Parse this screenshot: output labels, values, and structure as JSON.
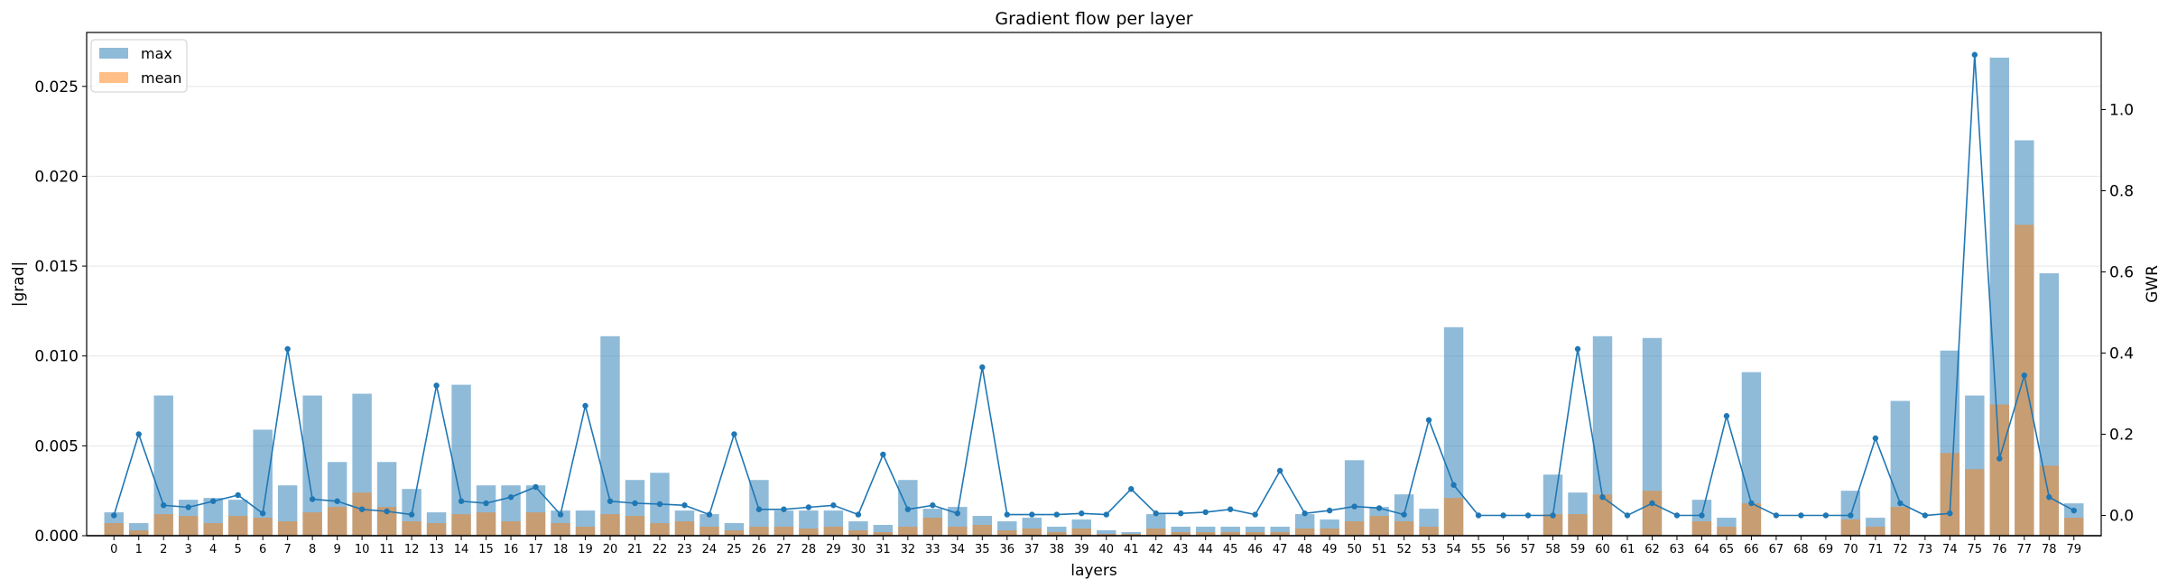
{
  "chart_data": {
    "type": "bar",
    "title": "Gradient flow per layer",
    "xlabel": "layers",
    "ylabel": "|grad|",
    "ylabel_right": "GWR",
    "ylim": [
      0,
      0.028
    ],
    "ylim_right": [
      -0.05,
      1.19
    ],
    "yticks": [
      "0.000",
      "0.005",
      "0.010",
      "0.015",
      "0.020",
      "0.025"
    ],
    "yticks_right": [
      "0.0",
      "0.2",
      "0.4",
      "0.6",
      "0.8",
      "1.0"
    ],
    "categories": [
      "0",
      "1",
      "2",
      "3",
      "4",
      "5",
      "6",
      "7",
      "8",
      "9",
      "10",
      "11",
      "12",
      "13",
      "14",
      "15",
      "16",
      "17",
      "18",
      "19",
      "20",
      "21",
      "22",
      "23",
      "24",
      "25",
      "26",
      "27",
      "28",
      "29",
      "30",
      "31",
      "32",
      "33",
      "34",
      "35",
      "36",
      "37",
      "38",
      "39",
      "40",
      "41",
      "42",
      "43",
      "44",
      "45",
      "46",
      "47",
      "48",
      "49",
      "50",
      "51",
      "52",
      "53",
      "54",
      "55",
      "56",
      "57",
      "58",
      "59",
      "60",
      "61",
      "62",
      "63",
      "64",
      "65",
      "66",
      "67",
      "68",
      "69",
      "70",
      "71",
      "72",
      "73",
      "74",
      "75",
      "76",
      "77",
      "78",
      "79"
    ],
    "series": [
      {
        "name": "max",
        "color": "#1f77b4",
        "values": [
          0.0013,
          0.0007,
          0.0078,
          0.002,
          0.0021,
          0.002,
          0.0059,
          0.0028,
          0.0078,
          0.0041,
          0.0079,
          0.0041,
          0.0026,
          0.0013,
          0.0084,
          0.0028,
          0.0028,
          0.0028,
          0.0014,
          0.0014,
          0.0111,
          0.0031,
          0.0035,
          0.0014,
          0.0012,
          0.0007,
          0.0031,
          0.0014,
          0.0014,
          0.0014,
          0.0008,
          0.0006,
          0.0031,
          0.0015,
          0.0016,
          0.0011,
          0.0008,
          0.001,
          0.0005,
          0.0009,
          0.0003,
          0.0002,
          0.0012,
          0.0005,
          0.0005,
          0.0005,
          0.0005,
          0.0005,
          0.0012,
          0.0009,
          0.0042,
          0.0016,
          0.0023,
          0.0015,
          0.0116,
          0,
          0,
          0,
          0.0034,
          0.0024,
          0.0111,
          0,
          0.011,
          0,
          0.002,
          0.001,
          0.0091,
          0,
          0,
          0,
          0.0025,
          0.001,
          0.0075,
          0,
          0.0103,
          0.0078,
          0.0266,
          0.022,
          0.0146,
          0.0018
        ]
      },
      {
        "name": "mean",
        "color": "#ff7f0e",
        "values": [
          0.0007,
          0.0003,
          0.0012,
          0.0011,
          0.0007,
          0.0011,
          0.001,
          0.0008,
          0.0013,
          0.0016,
          0.0024,
          0.0016,
          0.0008,
          0.0007,
          0.0012,
          0.0013,
          0.0008,
          0.0013,
          0.0007,
          0.0005,
          0.0012,
          0.0011,
          0.0007,
          0.0008,
          0.0005,
          0.0003,
          0.0005,
          0.0005,
          0.0004,
          0.0005,
          0.0003,
          0.0002,
          0.0005,
          0.001,
          0.0005,
          0.0006,
          0.0003,
          0.0004,
          0.0002,
          0.0004,
          0.0001,
          0.0001,
          0.0004,
          0.0002,
          0.0002,
          0.0002,
          0.0002,
          0.0002,
          0.0004,
          0.0004,
          0.0008,
          0.0011,
          0.0008,
          0.0005,
          0.0021,
          0,
          0,
          0,
          0.0012,
          0.0012,
          0.0023,
          0,
          0.0025,
          0,
          0.0008,
          0.0005,
          0.0018,
          0,
          0,
          0,
          0.0009,
          0.0005,
          0.0016,
          0,
          0.0046,
          0.0037,
          0.0073,
          0.0173,
          0.0039,
          0.001
        ]
      },
      {
        "name": "GWR",
        "color": "#1f77b4",
        "axis": "right",
        "values": [
          0,
          0.2,
          0.025,
          0.02,
          0.035,
          0.05,
          0.005,
          0.41,
          0.04,
          0.035,
          0.015,
          0.01,
          0.002,
          0.32,
          0.035,
          0.03,
          0.045,
          0.07,
          0.002,
          0.27,
          0.035,
          0.03,
          0.028,
          0.025,
          0.002,
          0.2,
          0.015,
          0.015,
          0.02,
          0.025,
          0.002,
          0.15,
          0.015,
          0.025,
          0.005,
          0.365,
          0.002,
          0.002,
          0.002,
          0.005,
          0.002,
          0.065,
          0.005,
          0.005,
          0.008,
          0.015,
          0.002,
          0.11,
          0.005,
          0.012,
          0.022,
          0.018,
          0.002,
          0.235,
          0.075,
          0,
          0,
          0,
          0,
          0.41,
          0.045,
          0,
          0.03,
          0,
          0,
          0.245,
          0.03,
          0,
          0,
          0,
          0,
          0.19,
          0.03,
          0,
          0.005,
          1.135,
          0.14,
          0.345,
          0.045,
          0.012
        ]
      }
    ],
    "legend": [
      "max",
      "mean"
    ],
    "legend_position": "upper-left",
    "grid": "y"
  }
}
